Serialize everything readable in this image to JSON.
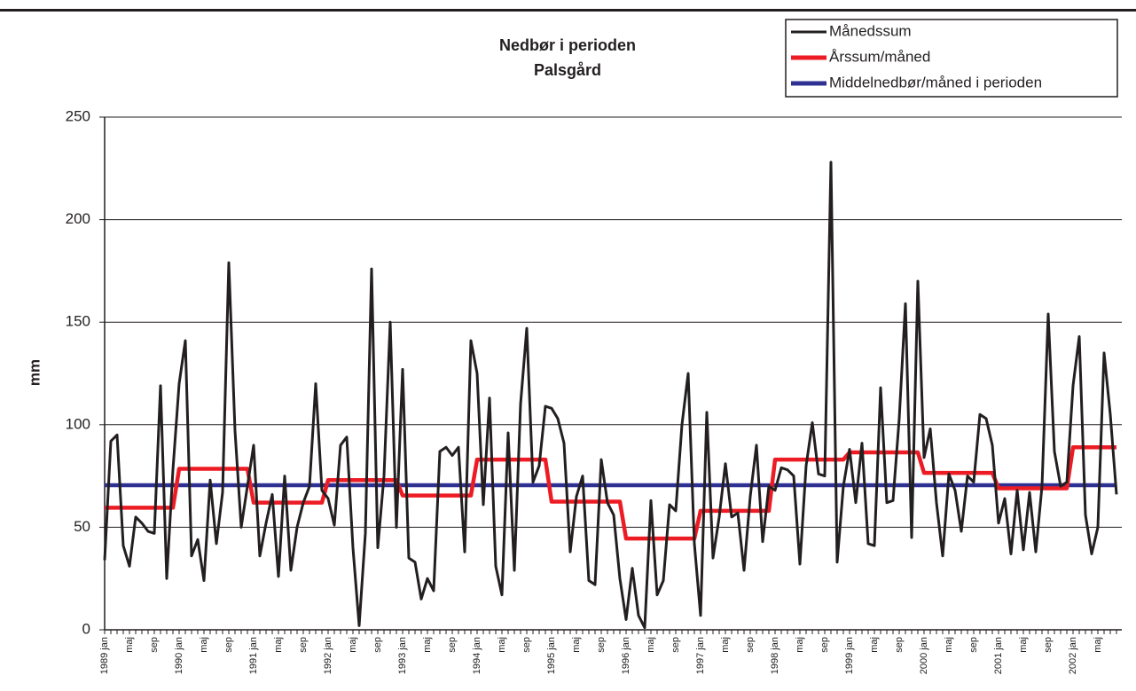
{
  "chart_data": {
    "type": "line",
    "title": "Nedbør i perioden",
    "subtitle": "Palsgård",
    "y_label": "mm",
    "categories": [
      "1989 jan",
      null,
      null,
      null,
      "maj",
      null,
      null,
      null,
      "sep",
      null,
      null,
      null,
      "1990 jan",
      null,
      null,
      null,
      "maj",
      null,
      null,
      null,
      "sep",
      null,
      null,
      null,
      "1991 jan",
      null,
      null,
      null,
      "maj",
      null,
      null,
      null,
      "sep",
      null,
      null,
      null,
      "1992 jan",
      null,
      null,
      null,
      "maj",
      null,
      null,
      null,
      "sep",
      null,
      null,
      null,
      "1993 jan",
      null,
      null,
      null,
      "maj",
      null,
      null,
      null,
      "sep",
      null,
      null,
      null,
      "1994 jan",
      null,
      null,
      null,
      "maj",
      null,
      null,
      null,
      "sep",
      null,
      null,
      null,
      "1995 jan",
      null,
      null,
      null,
      "maj",
      null,
      null,
      null,
      "sep",
      null,
      null,
      null,
      "1996 jan",
      null,
      null,
      null,
      "maj",
      null,
      null,
      null,
      "sep",
      null,
      null,
      null,
      "1997 jan",
      null,
      null,
      null,
      "maj",
      null,
      null,
      null,
      "sep",
      null,
      null,
      null,
      "1998 jan",
      null,
      null,
      null,
      "maj",
      null,
      null,
      null,
      "sep",
      null,
      null,
      null,
      "1999 jan",
      null,
      null,
      null,
      "maj",
      null,
      null,
      null,
      "sep",
      null,
      null,
      null,
      "2000 jan",
      null,
      null,
      null,
      "maj",
      null,
      null,
      null,
      "sep",
      null,
      null,
      null,
      "2001 jan",
      null,
      null,
      null,
      "maj",
      null,
      null,
      null,
      "sep",
      null,
      null,
      null,
      "2002 jan",
      null,
      null,
      null,
      "maj",
      null,
      null,
      null
    ],
    "series": [
      {
        "name": "Månedssum",
        "color": "#231f20",
        "values": [
          34,
          92,
          95,
          41,
          31,
          55,
          52,
          48,
          47,
          119,
          25,
          78,
          120,
          141,
          36,
          44,
          24,
          73,
          42,
          67,
          179,
          97,
          50,
          70,
          90,
          36,
          52,
          66,
          26,
          75,
          29,
          50,
          62,
          70,
          120,
          68,
          64,
          51,
          90,
          94,
          40,
          2,
          47,
          176,
          40,
          75,
          150,
          50,
          127,
          35,
          33,
          15,
          25,
          19,
          87,
          89,
          85,
          89,
          38,
          141,
          125,
          61,
          113,
          31,
          17,
          96,
          29,
          110,
          147,
          72,
          80,
          109,
          108,
          103,
          91,
          38,
          65,
          75,
          24,
          22,
          83,
          62,
          56,
          25,
          5,
          30,
          7,
          1,
          63,
          17,
          24,
          61,
          58,
          100,
          125,
          42,
          7,
          106,
          35,
          55,
          81,
          55,
          57,
          29,
          65,
          90,
          43,
          70,
          68,
          79,
          78,
          75,
          32,
          80,
          101,
          76,
          75,
          228,
          33,
          70,
          88,
          62,
          91,
          42,
          41,
          118,
          62,
          63,
          103,
          159,
          45,
          170,
          84,
          98,
          62,
          36,
          76,
          68,
          48,
          75,
          72,
          105,
          103,
          90,
          52,
          64,
          37,
          68,
          39,
          67,
          38,
          70,
          154,
          87,
          70,
          72,
          119,
          143,
          56,
          37,
          50,
          135,
          105,
          66
        ]
      },
      {
        "name": "Årssum/måned",
        "color": "#ed1c24",
        "values": [
          59.5,
          59.5,
          59.5,
          59.5,
          59.5,
          59.5,
          59.5,
          59.5,
          59.5,
          59.5,
          59.5,
          59.5,
          78.5,
          78.5,
          78.5,
          78.5,
          78.5,
          78.5,
          78.5,
          78.5,
          78.5,
          78.5,
          78.5,
          78.5,
          62,
          62,
          62,
          62,
          62,
          62,
          62,
          62,
          62,
          62,
          62,
          62,
          73,
          73,
          73,
          73,
          73,
          73,
          73,
          73,
          73,
          73,
          73,
          73,
          65.5,
          65.5,
          65.5,
          65.5,
          65.5,
          65.5,
          65.5,
          65.5,
          65.5,
          65.5,
          65.5,
          65.5,
          83,
          83,
          83,
          83,
          83,
          83,
          83,
          83,
          83,
          83,
          83,
          83,
          62.5,
          62.5,
          62.5,
          62.5,
          62.5,
          62.5,
          62.5,
          62.5,
          62.5,
          62.5,
          62.5,
          62.5,
          44.5,
          44.5,
          44.5,
          44.5,
          44.5,
          44.5,
          44.5,
          44.5,
          44.5,
          44.5,
          44.5,
          44.5,
          58,
          58,
          58,
          58,
          58,
          58,
          58,
          58,
          58,
          58,
          58,
          58,
          83,
          83,
          83,
          83,
          83,
          83,
          83,
          83,
          83,
          83,
          83,
          83,
          86.5,
          86.5,
          86.5,
          86.5,
          86.5,
          86.5,
          86.5,
          86.5,
          86.5,
          86.5,
          86.5,
          86.5,
          76.5,
          76.5,
          76.5,
          76.5,
          76.5,
          76.5,
          76.5,
          76.5,
          76.5,
          76.5,
          76.5,
          76.5,
          69,
          69,
          69,
          69,
          69,
          69,
          69,
          69,
          69,
          69,
          69,
          69,
          89,
          89,
          89,
          89,
          89,
          89,
          89,
          89
        ]
      },
      {
        "name": "Middelnedbør/måned i perioden",
        "color": "#2e3192",
        "values": [
          70.5,
          70.5,
          70.5,
          70.5,
          70.5,
          70.5,
          70.5,
          70.5,
          70.5,
          70.5,
          70.5,
          70.5,
          70.5,
          70.5,
          70.5,
          70.5,
          70.5,
          70.5,
          70.5,
          70.5,
          70.5,
          70.5,
          70.5,
          70.5,
          70.5,
          70.5,
          70.5,
          70.5,
          70.5,
          70.5,
          70.5,
          70.5,
          70.5,
          70.5,
          70.5,
          70.5,
          70.5,
          70.5,
          70.5,
          70.5,
          70.5,
          70.5,
          70.5,
          70.5,
          70.5,
          70.5,
          70.5,
          70.5,
          70.5,
          70.5,
          70.5,
          70.5,
          70.5,
          70.5,
          70.5,
          70.5,
          70.5,
          70.5,
          70.5,
          70.5,
          70.5,
          70.5,
          70.5,
          70.5,
          70.5,
          70.5,
          70.5,
          70.5,
          70.5,
          70.5,
          70.5,
          70.5,
          70.5,
          70.5,
          70.5,
          70.5,
          70.5,
          70.5,
          70.5,
          70.5,
          70.5,
          70.5,
          70.5,
          70.5,
          70.5,
          70.5,
          70.5,
          70.5,
          70.5,
          70.5,
          70.5,
          70.5,
          70.5,
          70.5,
          70.5,
          70.5,
          70.5,
          70.5,
          70.5,
          70.5,
          70.5,
          70.5,
          70.5,
          70.5,
          70.5,
          70.5,
          70.5,
          70.5,
          70.5,
          70.5,
          70.5,
          70.5,
          70.5,
          70.5,
          70.5,
          70.5,
          70.5,
          70.5,
          70.5,
          70.5,
          70.5,
          70.5,
          70.5,
          70.5,
          70.5,
          70.5,
          70.5,
          70.5,
          70.5,
          70.5,
          70.5,
          70.5,
          70.5,
          70.5,
          70.5,
          70.5,
          70.5,
          70.5,
          70.5,
          70.5,
          70.5,
          70.5,
          70.5,
          70.5,
          70.5,
          70.5,
          70.5,
          70.5,
          70.5,
          70.5,
          70.5,
          70.5,
          70.5,
          70.5,
          70.5,
          70.5,
          70.5,
          70.5,
          70.5,
          70.5,
          70.5,
          70.5,
          70.5,
          70.5
        ]
      }
    ],
    "ylim": [
      0,
      250
    ],
    "yticks": [
      0,
      50,
      100,
      150,
      200,
      250
    ],
    "grid": true,
    "legend": "top-right"
  }
}
